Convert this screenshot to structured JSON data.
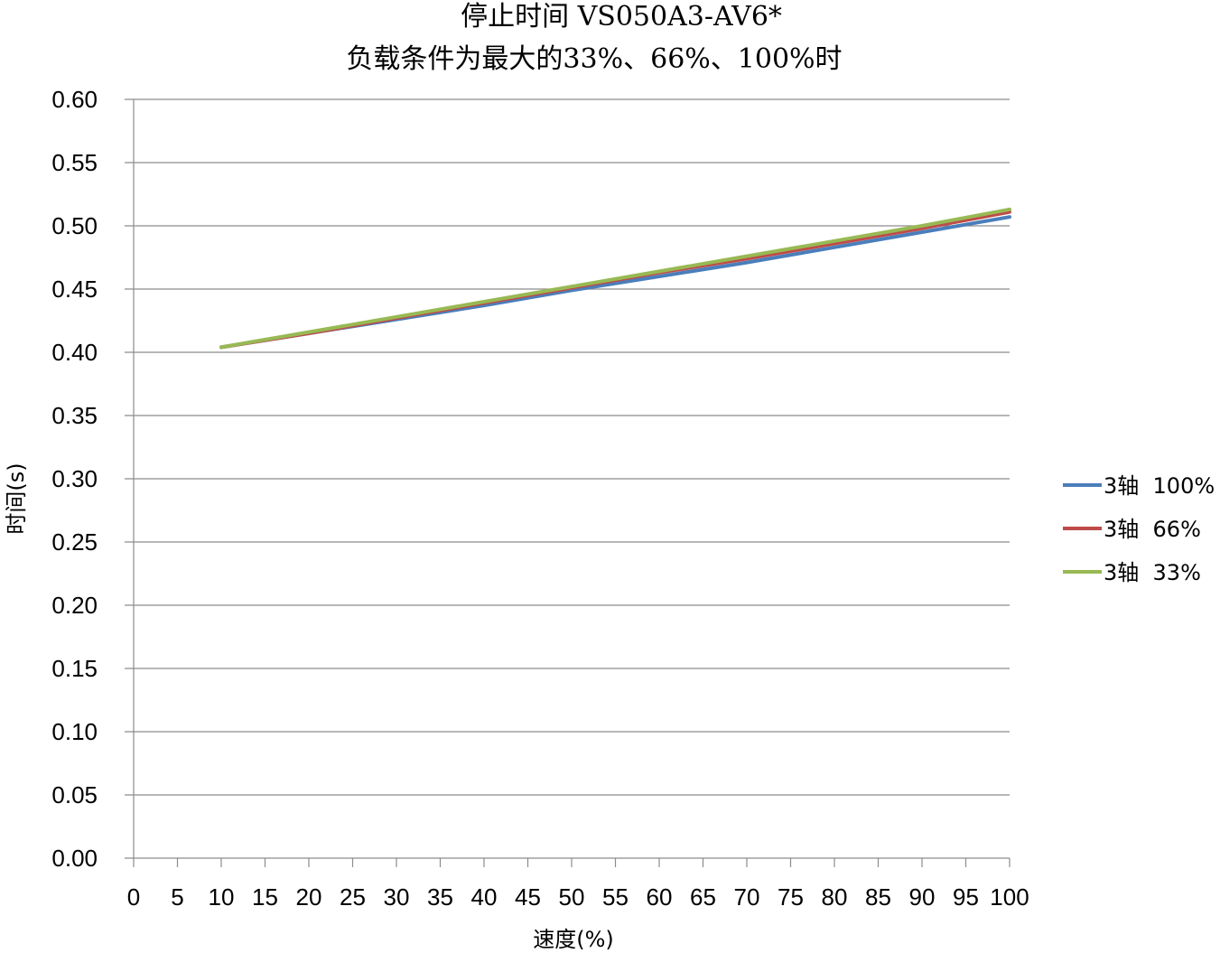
{
  "chart_data": {
    "type": "line",
    "title": [
      "停止时间 VS050A3-AV6*",
      "负载条件为最大的33%、66%、100%时"
    ],
    "xlabel": "速度(%)",
    "ylabel": "时间(s)",
    "xlim": [
      0,
      100
    ],
    "ylim": [
      0,
      0.6
    ],
    "x_ticks": [
      "0",
      "5",
      "10",
      "15",
      "20",
      "25",
      "30",
      "35",
      "40",
      "45",
      "50",
      "55",
      "60",
      "65",
      "70",
      "75",
      "80",
      "85",
      "90",
      "95",
      "100"
    ],
    "y_ticks": [
      "0.00",
      "0.05",
      "0.10",
      "0.15",
      "0.20",
      "0.25",
      "0.30",
      "0.35",
      "0.40",
      "0.45",
      "0.50",
      "0.55",
      "0.60"
    ],
    "grid": "horizontal",
    "legend_position": "right",
    "x": [
      10,
      20,
      30,
      40,
      50,
      60,
      70,
      80,
      90,
      100
    ],
    "series": [
      {
        "name": "3轴  100%",
        "color": "#4a7ebb",
        "values": [
          0.404,
          0.415,
          0.426,
          0.437,
          0.449,
          0.46,
          0.471,
          0.483,
          0.495,
          0.507
        ]
      },
      {
        "name": "3轴  66%",
        "color": "#be4b48",
        "values": [
          0.404,
          0.415,
          0.427,
          0.439,
          0.451,
          0.463,
          0.474,
          0.486,
          0.498,
          0.511
        ]
      },
      {
        "name": "3轴  33%",
        "color": "#98b954",
        "values": [
          0.404,
          0.416,
          0.428,
          0.44,
          0.452,
          0.464,
          0.476,
          0.488,
          0.5,
          0.513
        ]
      }
    ]
  }
}
